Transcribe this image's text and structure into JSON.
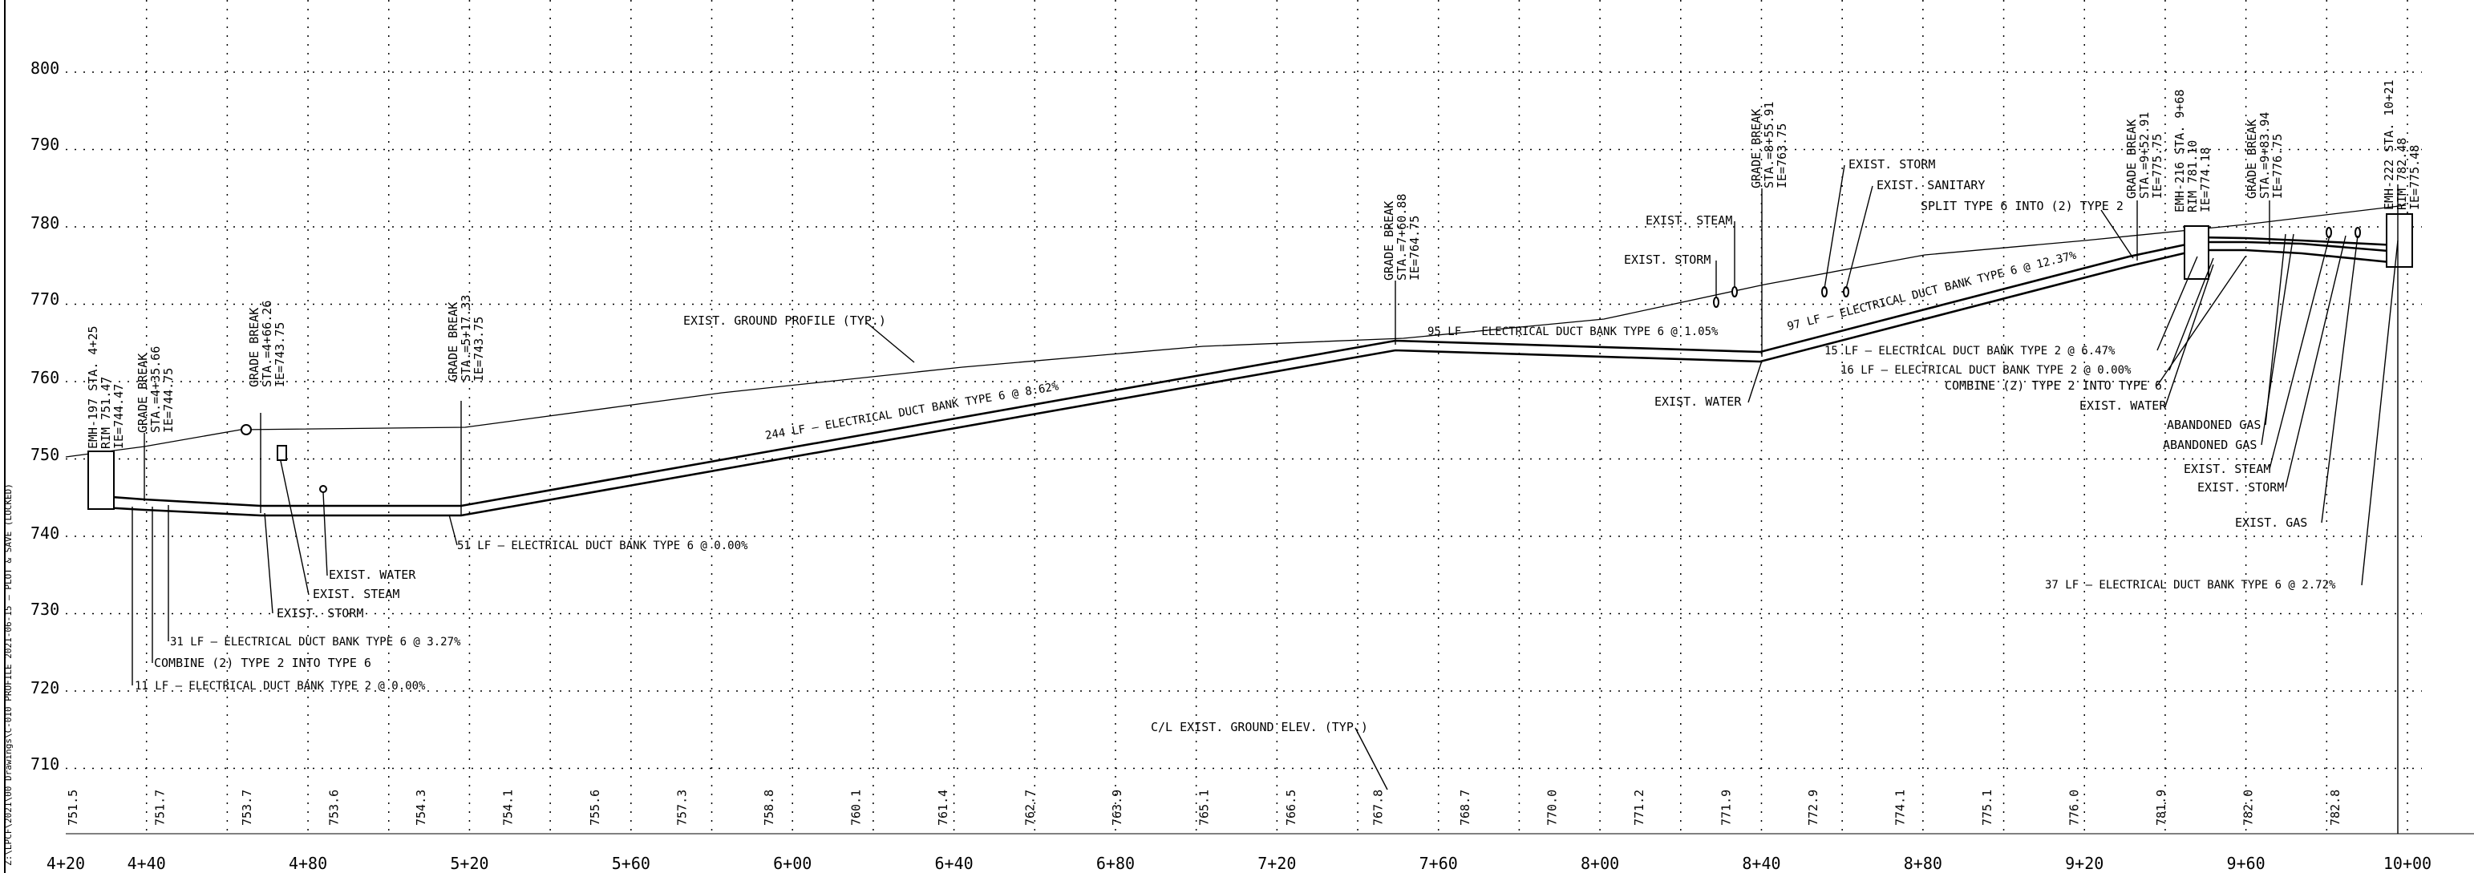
{
  "sheet": {
    "side_text": "Z:\\LPCF\\2021\\00 Drawings\\C-010 PROFILE 2021-06-15 — PLOT & SAVE (LOCKED)",
    "ground_callout": "EXIST. GROUND PROFILE (TYP.)",
    "ground_elev_callout": "C/L EXIST. GROUND ELEV. (TYP.)"
  },
  "axes": {
    "elevations": [
      "800",
      "790",
      "780",
      "770",
      "760",
      "750",
      "740",
      "730",
      "720",
      "710"
    ],
    "stations": [
      {
        "label": "4+20",
        "sta": 420
      },
      {
        "label": "4+40",
        "sta": 440
      },
      {
        "label": "4+80",
        "sta": 480
      },
      {
        "label": "5+20",
        "sta": 520
      },
      {
        "label": "5+60",
        "sta": 560
      },
      {
        "label": "6+00",
        "sta": 600
      },
      {
        "label": "6+40",
        "sta": 640
      },
      {
        "label": "6+80",
        "sta": 680
      },
      {
        "label": "7+20",
        "sta": 720
      },
      {
        "label": "7+60",
        "sta": 760
      },
      {
        "label": "8+00",
        "sta": 800
      },
      {
        "label": "8+40",
        "sta": 840
      },
      {
        "label": "8+80",
        "sta": 880
      },
      {
        "label": "9+20",
        "sta": 920
      },
      {
        "label": "9+60",
        "sta": 960
      },
      {
        "label": "10+00",
        "sta": 1000
      }
    ],
    "ground_elevs": [
      "751.5",
      "751.7",
      "753.7",
      "753.6",
      "754.3",
      "754.1",
      "755.6",
      "757.3",
      "758.8",
      "760.1",
      "761.4",
      "762.7",
      "763.9",
      "765.1",
      "766.5",
      "767.8",
      "768.7",
      "770.0",
      "771.2",
      "771.9",
      "772.9",
      "774.1",
      "775.1",
      "776.0",
      "781.9",
      "782.0",
      "782.8"
    ]
  },
  "structures": {
    "emh_left": [
      "EMH-197 STA. 4+25",
      "RIM 751.47",
      "IE=744.47"
    ],
    "emh_mid": [
      "EMH-216 STA. 9+68",
      "RIM 781.10",
      "IE=774.18"
    ],
    "emh_right": [
      "EMH-222 STA. 10+21",
      "RIM 782.48",
      "IE=775.48"
    ]
  },
  "grade_breaks": [
    [
      "GRADE BREAK",
      "STA.=4+35.66",
      "IE=744.75"
    ],
    [
      "GRADE BREAK",
      "STA.=4+66.26",
      "IE=743.75"
    ],
    [
      "GRADE BREAK",
      "STA.=5+17.33",
      "IE=743.75"
    ],
    [
      "GRADE BREAK",
      "STA.=7+60.88",
      "IE=764.75"
    ],
    [
      "GRADE BREAK",
      "STA.=8+55.91",
      "IE=763.75"
    ],
    [
      "GRADE BREAK",
      "STA.=9+52.91",
      "IE=775.75"
    ],
    [
      "GRADE BREAK",
      "STA.=9+83.94",
      "IE=776.75"
    ]
  ],
  "duct_labels": {
    "seg_244": "244 LF – ELECTRICAL DUCT BANK TYPE 6 @ 8.62%",
    "seg_95": "95 LF – ELECTRICAL DUCT BANK TYPE 6 @ 1.05%",
    "seg_97": "97 LF – ELECTRICAL DUCT BANK TYPE 6 @ 12.37%",
    "seg_51": "51 LF – ELECTRICAL DUCT BANK TYPE 6 @ 0.00%",
    "seg_31": "31 LF – ELECTRICAL DUCT BANK TYPE 6 @ 3.27%",
    "combine_left": "COMBINE (2) TYPE 2 INTO TYPE 6",
    "seg_11": "11 LF – ELECTRICAL DUCT BANK TYPE 2 @ 0.00%",
    "seg_15": "15 LF – ELECTRICAL DUCT BANK TYPE 2 @ 6.47%",
    "seg_16": "16 LF – ELECTRICAL DUCT BANK TYPE 2 @ 0.00%",
    "combine_right": "COMBINE (2) TYPE 2 INTO TYPE 6",
    "split": "SPLIT TYPE 6 INTO (2) TYPE 2",
    "seg_37": "37 LF – ELECTRICAL DUCT BANK TYPE 6 @ 2.72%"
  },
  "utilities": {
    "water_left": "EXIST. WATER",
    "steam_left": "EXIST. STEAM",
    "storm_left": "EXIST. STORM",
    "steam_mid": "EXIST. STEAM",
    "storm_mid": "EXIST. STORM",
    "water_mid": "EXIST. WATER",
    "storm_top": "EXIST. STORM",
    "sanitary_top": "EXIST. SANITARY",
    "water_right": "EXIST. WATER",
    "aband_gas_1": "ABANDONED GAS",
    "aband_gas_2": "ABANDONED GAS",
    "steam_right": "EXIST. STEAM",
    "storm_right": "EXIST. STORM",
    "gas_right": "EXIST. GAS"
  }
}
